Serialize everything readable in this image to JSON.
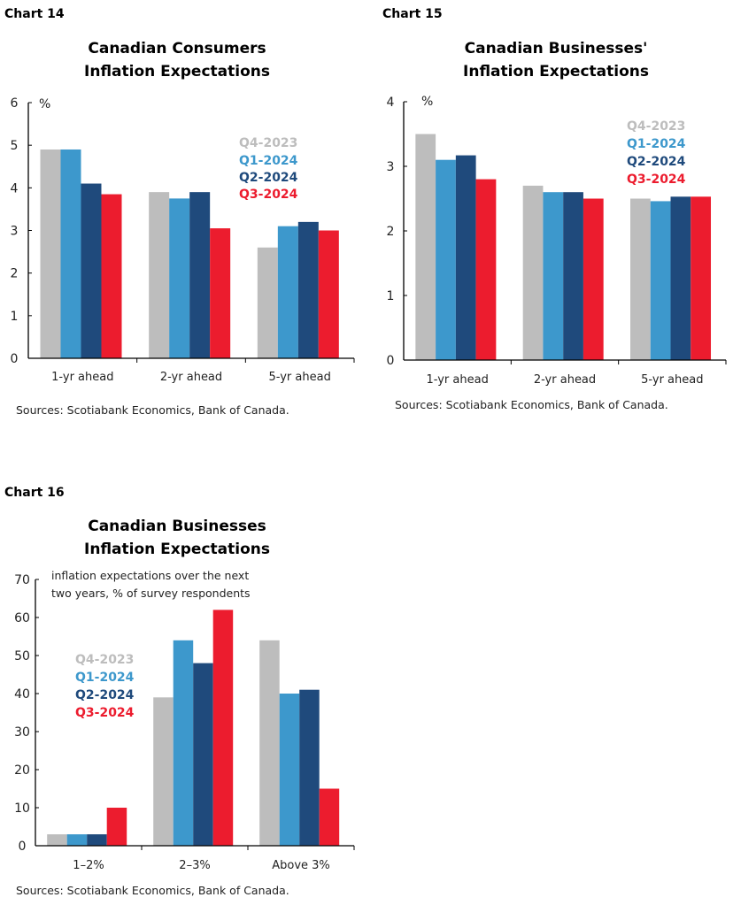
{
  "series_colors": [
    "#bdbdbd",
    "#3d98cc",
    "#1f4a7c",
    "#ec1c2e"
  ],
  "chart_data": [
    {
      "type": "bar",
      "label": "Chart 14",
      "title": [
        "Canadian Consumers",
        "Inflation Expectations"
      ],
      "unit": "%",
      "categories": [
        "1-yr ahead",
        "2-yr ahead",
        "5-yr ahead"
      ],
      "ylim": [
        0,
        6
      ],
      "yticks": [
        0,
        1,
        2,
        3,
        4,
        5,
        6
      ],
      "grid": false,
      "legend": "top-right",
      "series": [
        {
          "name": "Q4-2023",
          "values": [
            4.9,
            3.9,
            2.6
          ]
        },
        {
          "name": "Q1-2024",
          "values": [
            4.9,
            3.75,
            3.1
          ]
        },
        {
          "name": "Q2-2024",
          "values": [
            4.1,
            3.9,
            3.2
          ]
        },
        {
          "name": "Q3-2024",
          "values": [
            3.85,
            3.05,
            3.0
          ]
        }
      ],
      "source": "Sources: Scotiabank Economics, Bank of Canada."
    },
    {
      "type": "bar",
      "label": "Chart 15",
      "title": [
        "Canadian Businesses'",
        "Inflation Expectations"
      ],
      "unit": "%",
      "categories": [
        "1-yr ahead",
        "2-yr ahead",
        "5-yr ahead"
      ],
      "ylim": [
        0,
        4
      ],
      "yticks": [
        0,
        1,
        2,
        3,
        4
      ],
      "grid": false,
      "legend": "top-right",
      "series": [
        {
          "name": "Q4-2023",
          "values": [
            3.5,
            2.7,
            2.5
          ]
        },
        {
          "name": "Q1-2024",
          "values": [
            3.1,
            2.6,
            2.46
          ]
        },
        {
          "name": "Q2-2024",
          "values": [
            3.17,
            2.6,
            2.53
          ]
        },
        {
          "name": "Q3-2024",
          "values": [
            2.8,
            2.5,
            2.53
          ]
        }
      ],
      "source": "Sources: Scotiabank Economics, Bank of Canada."
    },
    {
      "type": "bar",
      "label": "Chart 16",
      "title": [
        "Canadian Businesses",
        "Inflation Expectations"
      ],
      "subtitle": [
        "inflation expectations over the next",
        "two years, % of survey respondents"
      ],
      "categories": [
        "1–2%",
        "2–3%",
        "Above 3%"
      ],
      "ylim": [
        0,
        70
      ],
      "yticks": [
        0,
        10,
        20,
        30,
        40,
        50,
        60,
        70
      ],
      "grid": false,
      "legend": "top-left",
      "series": [
        {
          "name": "Q4-2023",
          "values": [
            3,
            39,
            54
          ]
        },
        {
          "name": "Q1-2024",
          "values": [
            3,
            54,
            40
          ]
        },
        {
          "name": "Q2-2024",
          "values": [
            3,
            48,
            41
          ]
        },
        {
          "name": "Q3-2024",
          "values": [
            10,
            62,
            15
          ]
        }
      ],
      "source": "Sources: Scotiabank Economics, Bank of Canada."
    }
  ]
}
